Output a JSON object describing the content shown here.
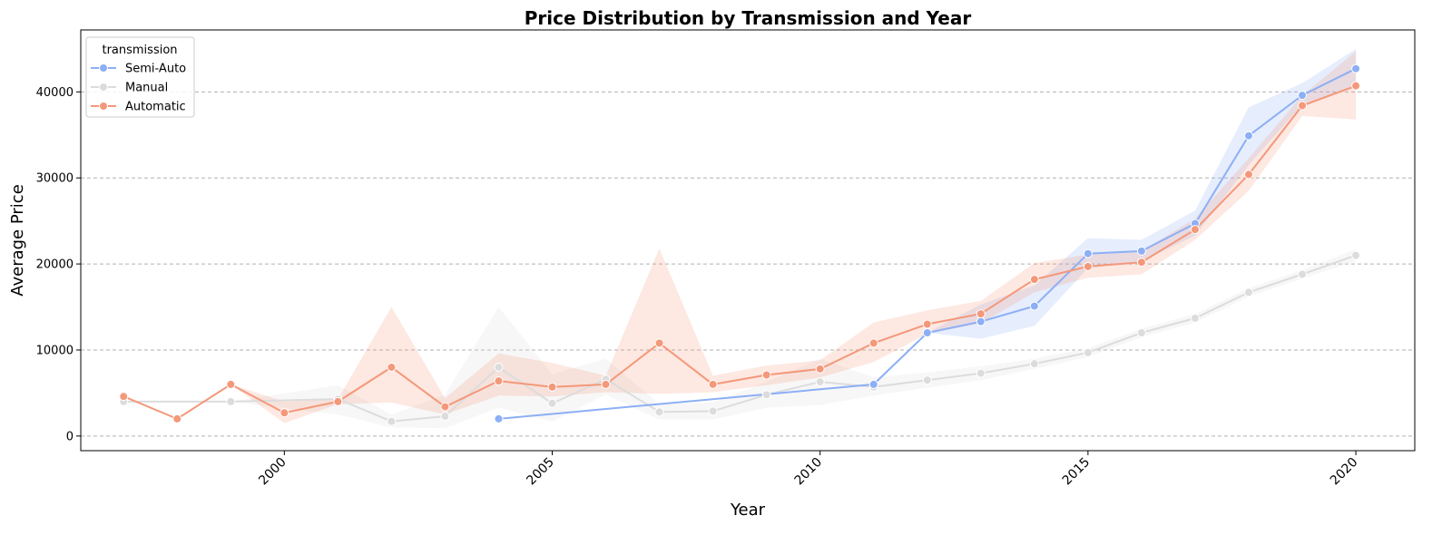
{
  "chart_data": {
    "type": "line",
    "title": "Price Distribution by Transmission and Year",
    "xlabel": "Year",
    "ylabel": "Average Price",
    "xlim": [
      1996.2,
      2021.1
    ],
    "ylim": [
      -1700,
      47200
    ],
    "xticks": [
      2000,
      2005,
      2010,
      2015,
      2020
    ],
    "yticks": [
      0,
      10000,
      20000,
      30000,
      40000
    ],
    "grid": "y-dashed",
    "legend": {
      "title": "transmission",
      "placement": "top-left"
    },
    "series": [
      {
        "name": "Semi-Auto",
        "color": "#8caff5",
        "x": [
          2004,
          2011,
          2012,
          2013,
          2014,
          2015,
          2016,
          2017,
          2018,
          2019,
          2020
        ],
        "y": [
          2000,
          6000,
          12000,
          13300,
          15100,
          21200,
          21500,
          24700,
          34900,
          39600,
          42700
        ],
        "ci_low": [
          2000,
          6000,
          12000,
          11300,
          12800,
          19500,
          20300,
          23300,
          31500,
          38500,
          40500
        ],
        "ci_high": [
          2000,
          6000,
          12000,
          15300,
          17500,
          23000,
          22800,
          26200,
          38200,
          41000,
          45000
        ]
      },
      {
        "name": "Manual",
        "color": "#dcdcdc",
        "x": [
          1997,
          1999,
          2001,
          2002,
          2003,
          2004,
          2005,
          2006,
          2007,
          2008,
          2009,
          2010,
          2011,
          2012,
          2013,
          2014,
          2015,
          2016,
          2017,
          2018,
          2019,
          2020
        ],
        "y": [
          4000,
          4000,
          4300,
          1700,
          2300,
          8000,
          3800,
          6600,
          2800,
          2900,
          4800,
          6300,
          5700,
          6500,
          7300,
          8400,
          9700,
          12000,
          13700,
          16700,
          18800,
          21000
        ],
        "ci_low": [
          4000,
          4000,
          2500,
          1000,
          900,
          3300,
          1700,
          4800,
          1900,
          1900,
          3300,
          3600,
          4700,
          5600,
          6500,
          7800,
          9200,
          11500,
          13200,
          16200,
          18300,
          20300
        ],
        "ci_high": [
          4000,
          4000,
          5900,
          2500,
          4800,
          15000,
          7200,
          9000,
          3700,
          3900,
          6300,
          9000,
          6800,
          7400,
          8100,
          9000,
          10200,
          12500,
          14200,
          17200,
          19300,
          21700
        ]
      },
      {
        "name": "Automatic",
        "color": "#f4987a",
        "x": [
          1997,
          1998,
          1999,
          2000,
          2001,
          2002,
          2003,
          2004,
          2005,
          2006,
          2007,
          2008,
          2009,
          2010,
          2011,
          2012,
          2013,
          2014,
          2015,
          2016,
          2017,
          2018,
          2019,
          2020
        ],
        "y": [
          4600,
          2000,
          6000,
          2700,
          4000,
          8000,
          3400,
          6400,
          5700,
          6000,
          10800,
          6000,
          7100,
          7800,
          10800,
          13000,
          14200,
          18200,
          19700,
          20200,
          24000,
          30400,
          38400,
          40700
        ],
        "ci_low": [
          4600,
          2000,
          6000,
          1500,
          3700,
          3900,
          2500,
          4700,
          4600,
          5100,
          4900,
          5100,
          5900,
          6800,
          8600,
          11900,
          13100,
          16700,
          18400,
          18800,
          22800,
          28500,
          37200,
          36800
        ],
        "ci_high": [
          4600,
          2000,
          6000,
          4000,
          4300,
          15000,
          4400,
          9600,
          8500,
          7000,
          21800,
          7000,
          8200,
          8800,
          13200,
          14600,
          15700,
          20100,
          21100,
          21500,
          25300,
          32300,
          39600,
          44700
        ]
      }
    ]
  }
}
